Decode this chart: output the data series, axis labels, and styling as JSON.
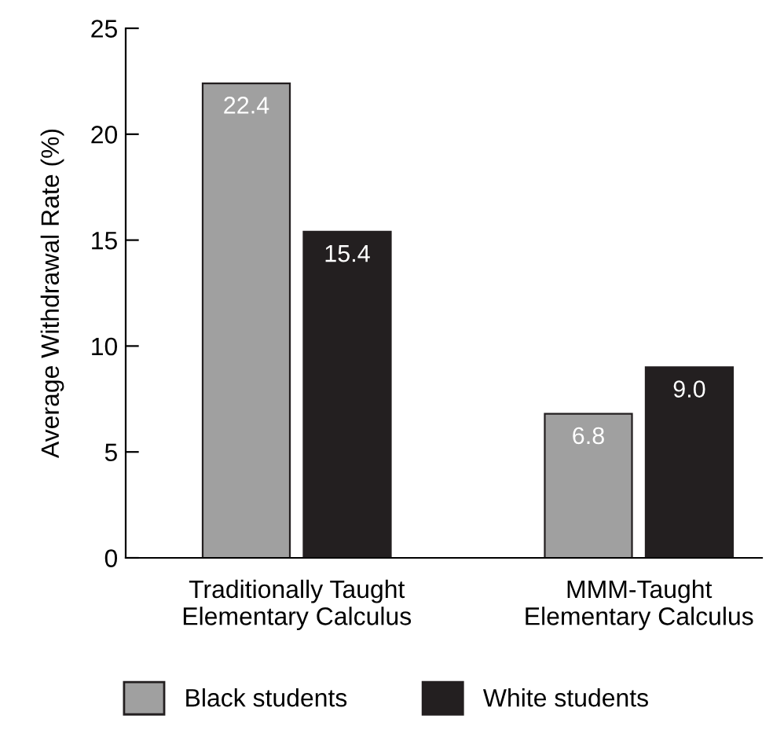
{
  "chart_data": {
    "type": "bar",
    "ylabel": "Average Withdrawal Rate (%)",
    "categories": [
      "Traditionally Taught\nElementary Calculus",
      "MMM-Taught\nElementary Calculus"
    ],
    "series": [
      {
        "name": "Black students",
        "color": "#a0a0a0",
        "values": [
          22.4,
          6.8
        ],
        "value_labels": [
          "22.4",
          "6.8"
        ]
      },
      {
        "name": "White students",
        "color": "#231f20",
        "values": [
          15.4,
          9.0
        ],
        "value_labels": [
          "15.4",
          "9.0"
        ]
      }
    ],
    "ylim": [
      0,
      25
    ],
    "yticks": [
      0,
      5,
      10,
      15,
      20,
      25
    ],
    "grid": false,
    "legend": "bottom"
  }
}
